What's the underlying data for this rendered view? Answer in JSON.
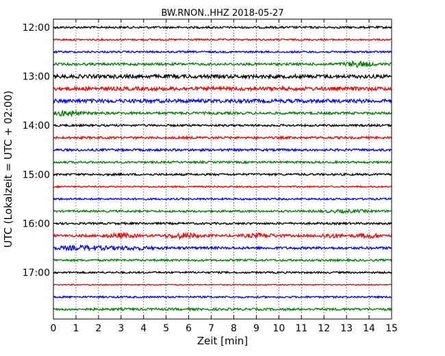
{
  "chart_data": {
    "type": "line",
    "title": "BW.RNON..HHZ 2018-05-27",
    "xlabel": "Zeit  [min]",
    "ylabel": "UTC (Lokalzeit = UTC + 02:00)",
    "xlim": [
      0,
      15
    ],
    "x_ticks": [
      "0",
      "1",
      "2",
      "3",
      "4",
      "5",
      "6",
      "7",
      "8",
      "9",
      "10",
      "11",
      "12",
      "13",
      "14",
      "15"
    ],
    "x_grid": "dotted",
    "y_ticks": [
      "12:00",
      "13:00",
      "14:00",
      "15:00",
      "16:00",
      "17:00"
    ],
    "trace_interval_min": 15,
    "colors": {
      "black": "#000000",
      "red": "#ff0000",
      "blue": "#0000ff",
      "green": "#008000"
    },
    "series": [
      {
        "start": "12:00",
        "color": "black",
        "amplitude": 0.25,
        "bursts": []
      },
      {
        "start": "12:15",
        "color": "red",
        "amplitude": 0.2,
        "bursts": []
      },
      {
        "start": "12:30",
        "color": "blue",
        "amplitude": 0.22,
        "bursts": []
      },
      {
        "start": "12:45",
        "color": "green",
        "amplitude": 0.3,
        "bursts": [
          [
            13.5,
            0.6,
            0.5
          ]
        ]
      },
      {
        "start": "13:00",
        "color": "black",
        "amplitude": 0.45,
        "bursts": []
      },
      {
        "start": "13:15",
        "color": "red",
        "amplitude": 0.45,
        "bursts": []
      },
      {
        "start": "13:30",
        "color": "blue",
        "amplitude": 0.45,
        "bursts": []
      },
      {
        "start": "13:45",
        "color": "green",
        "amplitude": 0.3,
        "bursts": [
          [
            0.6,
            0.5,
            0.5
          ]
        ]
      },
      {
        "start": "14:00",
        "color": "black",
        "amplitude": 0.25,
        "bursts": []
      },
      {
        "start": "14:15",
        "color": "red",
        "amplitude": 0.28,
        "bursts": []
      },
      {
        "start": "14:30",
        "color": "blue",
        "amplitude": 0.28,
        "bursts": []
      },
      {
        "start": "14:45",
        "color": "green",
        "amplitude": 0.25,
        "bursts": []
      },
      {
        "start": "15:00",
        "color": "black",
        "amplitude": 0.25,
        "bursts": []
      },
      {
        "start": "15:15",
        "color": "red",
        "amplitude": 0.18,
        "bursts": []
      },
      {
        "start": "15:30",
        "color": "blue",
        "amplitude": 0.22,
        "bursts": []
      },
      {
        "start": "15:45",
        "color": "green",
        "amplitude": 0.25,
        "bursts": [
          [
            13.0,
            1.0,
            0.2
          ]
        ]
      },
      {
        "start": "16:00",
        "color": "black",
        "amplitude": 0.25,
        "bursts": []
      },
      {
        "start": "16:15",
        "color": "red",
        "amplitude": 0.3,
        "bursts": [
          [
            3.0,
            0.6,
            0.4
          ],
          [
            5.7,
            0.7,
            0.45
          ],
          [
            9.2,
            0.7,
            0.35
          ],
          [
            12.3,
            0.5,
            0.35
          ],
          [
            14.0,
            0.5,
            0.35
          ]
        ]
      },
      {
        "start": "16:30",
        "color": "blue",
        "amplitude": 0.3,
        "bursts": [
          [
            1.3,
            1.2,
            0.35
          ],
          [
            3.5,
            0.9,
            0.25
          ]
        ]
      },
      {
        "start": "16:45",
        "color": "green",
        "amplitude": 0.25,
        "bursts": []
      },
      {
        "start": "17:00",
        "color": "black",
        "amplitude": 0.22,
        "bursts": []
      },
      {
        "start": "17:15",
        "color": "red",
        "amplitude": 0.12,
        "bursts": []
      },
      {
        "start": "17:30",
        "color": "blue",
        "amplitude": 0.22,
        "bursts": []
      },
      {
        "start": "17:45",
        "color": "green",
        "amplitude": 0.28,
        "bursts": []
      }
    ]
  }
}
